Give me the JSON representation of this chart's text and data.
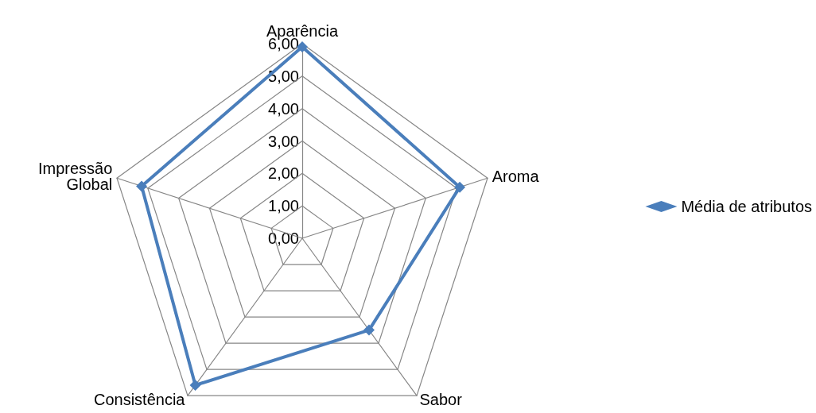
{
  "chart_data": {
    "type": "radar",
    "categories": [
      "Aparência",
      "Aroma",
      "Sabor",
      "Consistência",
      "Impressão\nGlobal"
    ],
    "series": [
      {
        "name": "Média de atributos",
        "color": "#4a7ebb",
        "values": [
          5.9,
          5.1,
          3.5,
          5.6,
          5.2
        ]
      }
    ],
    "ylim": [
      0,
      6
    ],
    "yticks": [
      {
        "value": 0,
        "label": "0,00"
      },
      {
        "value": 1,
        "label": "1,00"
      },
      {
        "value": 2,
        "label": "2,00"
      },
      {
        "value": 3,
        "label": "3,00"
      },
      {
        "value": 4,
        "label": "4,00"
      },
      {
        "value": 5,
        "label": "5,00"
      },
      {
        "value": 6,
        "label": "6,00"
      }
    ],
    "grid": true,
    "legend": "right",
    "marker": "diamond",
    "line_style": "solid"
  }
}
